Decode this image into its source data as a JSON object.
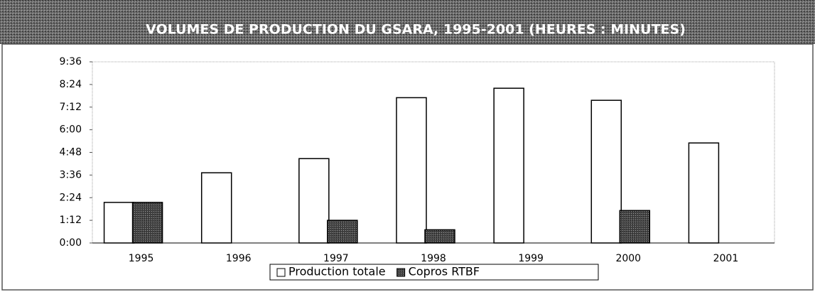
{
  "chart_data": {
    "type": "bar",
    "title": "VOLUMES DE PRODUCTION DU GSARA, 1995-2001 (HEURES : MINUTES)",
    "categories": [
      "1995",
      "1996",
      "1997",
      "1998",
      "1999",
      "2000",
      "2001"
    ],
    "series": [
      {
        "name": "Production totale",
        "color": "#ffffff",
        "values": [
          2.15,
          3.72,
          4.47,
          7.7,
          8.2,
          7.56,
          5.3
        ]
      },
      {
        "name": "Copros RTBF",
        "color": "#555555",
        "values": [
          2.15,
          null,
          1.2,
          0.7,
          null,
          1.72,
          null
        ]
      }
    ],
    "ylim": [
      0,
      9.6
    ],
    "yticks": [
      {
        "value": 0,
        "label": "0:00"
      },
      {
        "value": 1.2,
        "label": "1:12"
      },
      {
        "value": 2.4,
        "label": "2:24"
      },
      {
        "value": 3.6,
        "label": "3:36"
      },
      {
        "value": 4.8,
        "label": "4:48"
      },
      {
        "value": 6,
        "label": "6:00"
      },
      {
        "value": 7.2,
        "label": "7:12"
      },
      {
        "value": 8.4,
        "label": "8:24"
      },
      {
        "value": 9.6,
        "label": "9:36"
      }
    ],
    "grid": false,
    "legend": "bottom"
  }
}
